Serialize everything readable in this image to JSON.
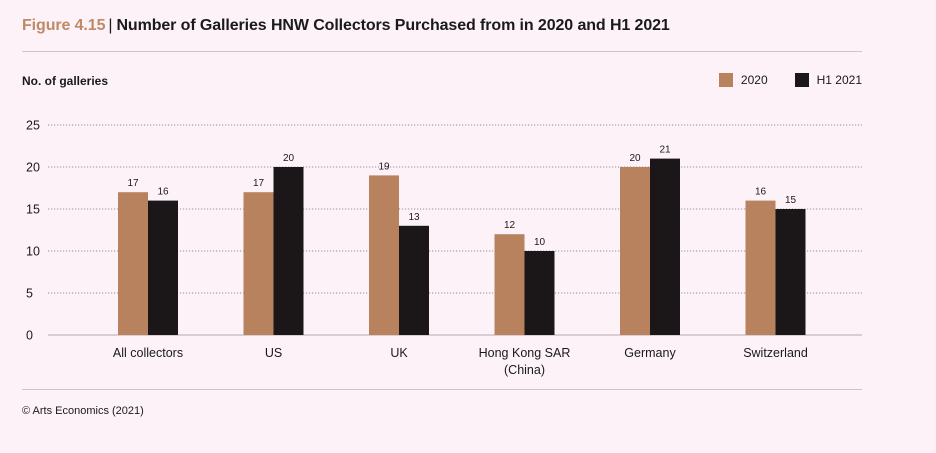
{
  "figure": {
    "label": "Figure 4.15",
    "separator": "|",
    "title": "Number of Galleries HNW Collectors Purchased from in 2020 and H1 2021"
  },
  "source": "© Arts Economics (2021)",
  "colors": {
    "series_2020": "#b8825f",
    "series_h1_2021": "#1b1719",
    "accent": "#bf8a66"
  },
  "chart_data": {
    "type": "bar",
    "title": "Number of Galleries HNW Collectors Purchased from in 2020 and H1 2021",
    "xlabel": "",
    "ylabel": "No. of galleries",
    "ylim": [
      0,
      25
    ],
    "yticks": [
      0,
      5,
      10,
      15,
      20,
      25
    ],
    "grid": true,
    "legend_position": "top-right",
    "categories": [
      [
        "All collectors"
      ],
      [
        "US"
      ],
      [
        "UK"
      ],
      [
        "Hong Kong SAR",
        "(China)"
      ],
      [
        "Germany"
      ],
      [
        "Switzerland"
      ]
    ],
    "series": [
      {
        "name": "2020",
        "values": [
          17,
          17,
          19,
          12,
          20,
          16
        ]
      },
      {
        "name": "H1 2021",
        "values": [
          16,
          20,
          13,
          10,
          21,
          15
        ]
      }
    ]
  }
}
